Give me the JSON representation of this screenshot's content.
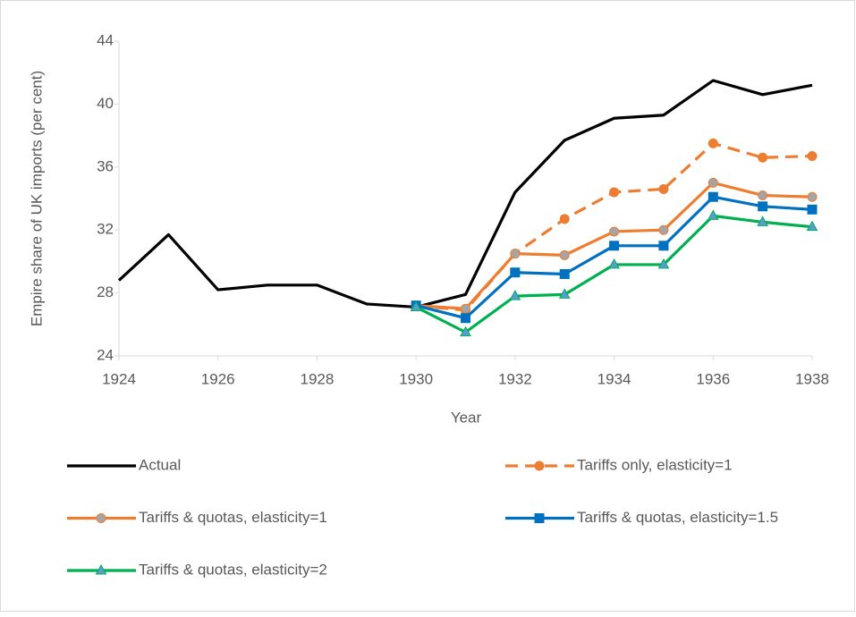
{
  "chart_data": {
    "type": "line",
    "x_label": "Year",
    "y_label": "Empire share of UK imports (per cent)",
    "x": [
      1924,
      1925,
      1926,
      1927,
      1928,
      1929,
      1930,
      1931,
      1932,
      1933,
      1934,
      1935,
      1936,
      1937,
      1938
    ],
    "xlim": [
      1924,
      1938
    ],
    "xticks": [
      1924,
      1926,
      1928,
      1930,
      1932,
      1934,
      1936,
      1938
    ],
    "ylim": [
      24,
      44
    ],
    "yticks": [
      24,
      28,
      32,
      36,
      40,
      44
    ],
    "grid": false,
    "series": [
      {
        "name": "Actual",
        "color": "#000000",
        "marker": "none",
        "dashed": false,
        "values": [
          28.8,
          31.7,
          28.2,
          28.5,
          28.5,
          27.3,
          27.1,
          27.9,
          34.4,
          37.7,
          39.1,
          39.3,
          41.5,
          40.6,
          41.2
        ]
      },
      {
        "name": "Tariffs only, elasticity=1",
        "color": "#ed7d31",
        "marker": "circle",
        "marker_color": "#ed7d31",
        "dashed": true,
        "values": [
          null,
          null,
          null,
          null,
          null,
          null,
          27.2,
          26.9,
          30.5,
          32.7,
          34.4,
          34.6,
          37.5,
          36.6,
          36.7
        ]
      },
      {
        "name": "Tariffs & quotas, elasticity=1",
        "color": "#ed7d31",
        "marker": "circle",
        "marker_color": "#a5a5a5",
        "dashed": false,
        "values": [
          null,
          null,
          null,
          null,
          null,
          null,
          27.2,
          27.0,
          30.5,
          30.4,
          31.9,
          32.0,
          35.0,
          34.2,
          34.1
        ]
      },
      {
        "name": "Tariffs & quotas, elasticity=1.5",
        "color": "#0070c0",
        "marker": "square",
        "marker_color": "#0070c0",
        "dashed": false,
        "values": [
          null,
          null,
          null,
          null,
          null,
          null,
          27.2,
          26.4,
          29.3,
          29.2,
          31.0,
          31.0,
          34.1,
          33.5,
          33.3
        ]
      },
      {
        "name": "Tariffs & quotas, elasticity=2",
        "color": "#00b050",
        "marker": "triangle",
        "marker_color": "#5b9bd5",
        "dashed": false,
        "values": [
          null,
          null,
          null,
          null,
          null,
          null,
          27.1,
          25.5,
          27.8,
          27.9,
          29.8,
          29.8,
          32.9,
          32.5,
          32.2
        ]
      }
    ]
  }
}
